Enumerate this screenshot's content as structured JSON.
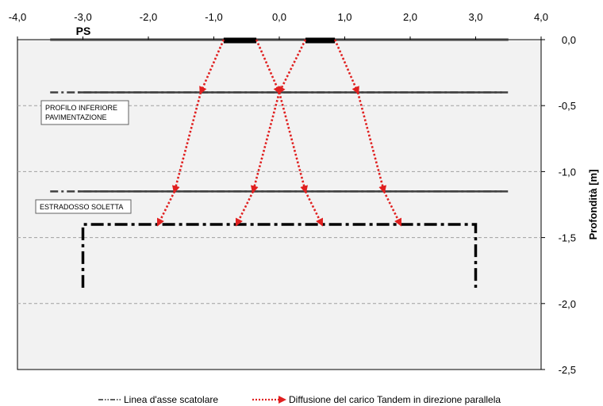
{
  "chart_data": {
    "type": "line",
    "title": "",
    "xlabel": "",
    "ylabel": "Profondità [m]",
    "xlim": [
      -4.0,
      4.0
    ],
    "ylim": [
      -2.5,
      0.0
    ],
    "x_ticks": [
      "-4,0",
      "-3,0",
      "-2,0",
      "-1,0",
      "0,0",
      "1,0",
      "2,0",
      "3,0",
      "4,0"
    ],
    "y_ticks": [
      "0,0",
      "-0,5",
      "-1,0",
      "-1,5",
      "-2,0",
      "-2,5"
    ],
    "x_tick_values": [
      -4,
      -3,
      -2,
      -1,
      0,
      1,
      2,
      3,
      4
    ],
    "y_tick_values": [
      0,
      -0.5,
      -1,
      -1.5,
      -2,
      -2.5
    ],
    "gridlines_y": [
      -0.5,
      -1.0,
      -1.5,
      -2.0
    ],
    "grid": true,
    "plot_background": "#f2f2f2",
    "annotations": {
      "ps_label": "PS",
      "ps_x": -3.0,
      "pavimentazione_label_line1": "PROFILO INFERIORE",
      "pavimentazione_label_line2": "PAVIMENTAZIONE",
      "soletta_label": "ESTRADOSSO SOLETTA"
    },
    "layers": [
      {
        "name": "profilo inferiore pavimentazione",
        "y": -0.4,
        "x": [
          -3.5,
          3.5
        ],
        "solid_x": [
          -3.08,
          3.4
        ]
      },
      {
        "name": "estradosso soletta",
        "y": -1.15,
        "x": [
          -3.5,
          3.5
        ],
        "solid_x": [
          -3.08,
          3.4
        ]
      }
    ],
    "surface": {
      "y": 0.0,
      "x": [
        -3.5,
        3.5
      ]
    },
    "wheel_loads": [
      {
        "x": [
          -0.85,
          -0.35
        ],
        "y": 0.0
      },
      {
        "x": [
          0.4,
          0.85
        ],
        "y": 0.0
      }
    ],
    "box_axis": {
      "x": [
        -3.0,
        3.0
      ],
      "top_y": -1.4,
      "bottom_y": -1.88
    },
    "diffusion_lines": [
      {
        "x": [
          -0.85,
          -1.2,
          -1.6,
          -1.85
        ],
        "y": [
          0.0,
          -0.4,
          -1.15,
          -1.4
        ]
      },
      {
        "x": [
          -0.35,
          0.0,
          -0.4,
          -0.65
        ],
        "y": [
          0.0,
          -0.4,
          -1.15,
          -1.4
        ]
      },
      {
        "x": [
          0.4,
          0.0,
          0.4,
          0.65
        ],
        "y": [
          0.0,
          -0.4,
          -1.15,
          -1.4
        ]
      },
      {
        "x": [
          0.85,
          1.2,
          1.6,
          1.85
        ],
        "y": [
          0.0,
          -0.4,
          -1.15,
          -1.4
        ]
      }
    ],
    "colors": {
      "diffusion": "#e02020",
      "box_axis": "#000000",
      "layer": "#404040",
      "grid": "#a0a0a0"
    },
    "legend": {
      "placement": "bottom",
      "entries": [
        {
          "label": "Linea d'asse scatolare",
          "style": "dash-dot"
        },
        {
          "label": "Diffusione del carico Tandem in direzione parallela",
          "style": "red-dotted-arrow"
        }
      ]
    }
  }
}
